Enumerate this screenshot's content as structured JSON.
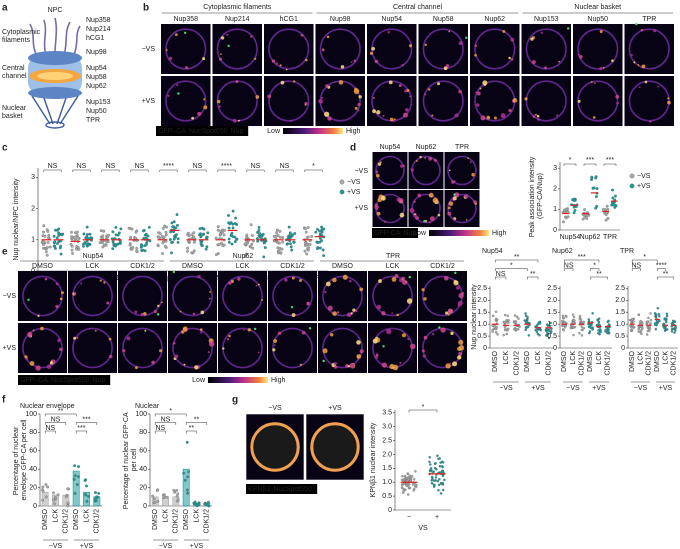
{
  "panel_labels": [
    "a",
    "b",
    "c",
    "d",
    "e",
    "f",
    "g"
  ],
  "a": {
    "title": "NPC",
    "left_labels": [
      "Cytoplasmic filaments",
      "Central channel",
      "Nuclear basket"
    ],
    "right_labels": [
      "Nup358",
      "Nup214",
      "hCG1",
      "Nup98",
      "Nup54",
      "Nup58",
      "Nup62",
      "Nup153",
      "Nup50",
      "TPR"
    ]
  },
  "b": {
    "groups": [
      "Cytoplasmic filaments",
      "Central channel",
      "Nuclear basket"
    ],
    "columns": [
      "Nup358",
      "Nup214",
      "hCG1",
      "Nup98",
      "Nup54",
      "Nup58",
      "Nup62",
      "Nup153",
      "Nup50",
      "TPR"
    ],
    "rows": [
      "−VS",
      "+VS"
    ],
    "legend": [
      "GFP–CA",
      "NucSpot650",
      "Nup"
    ],
    "colorbar": [
      "Low",
      "High"
    ]
  },
  "c": {
    "chart_data": {
      "type": "strip",
      "ylabel": "Nup nuclear/NPC intensity",
      "categories": [
        "Nup358",
        "Nup214",
        "hCG1",
        "Nup98",
        "Nup54",
        "Nup58",
        "Nup62",
        "Nup153",
        "Nup50",
        "TPR"
      ],
      "ylim": [
        0,
        3.3
      ],
      "yticks": [
        0,
        1,
        2,
        3
      ],
      "significance": [
        "NS",
        "NS",
        "NS",
        "NS",
        "****",
        "NS",
        "****",
        "NS",
        "NS",
        "*"
      ],
      "series": [
        {
          "name": "−VS",
          "color": "#a8a8a8",
          "values": [
            1.0,
            0.95,
            1.0,
            1.0,
            1.0,
            1.0,
            1.0,
            1.0,
            1.0,
            1.0
          ]
        },
        {
          "name": "+VS",
          "color": "#1a9a9a",
          "values": [
            1.0,
            1.0,
            1.0,
            1.0,
            1.3,
            1.0,
            1.3,
            1.0,
            1.0,
            1.1
          ]
        }
      ]
    }
  },
  "d": {
    "columns": [
      "Nup54",
      "Nup62",
      "TPR"
    ],
    "rows": [
      "−VS",
      "+VS"
    ],
    "legend": [
      "GFP-CA",
      "Nup"
    ],
    "colorbar": [
      "Low",
      "High"
    ],
    "chart_data": {
      "type": "strip",
      "ylabel": "Peak association intensity (GFP-CA/Nup)",
      "categories": [
        "Nup54",
        "Nup62",
        "TPR"
      ],
      "ylim": [
        0,
        3.3
      ],
      "yticks": [
        0,
        1,
        2,
        3
      ],
      "significance": [
        "*",
        "***",
        "***"
      ],
      "series": [
        {
          "name": "−VS",
          "color": "#a8a8a8",
          "values": [
            0.8,
            0.8,
            0.9
          ]
        },
        {
          "name": "+VS",
          "color": "#1a9a9a",
          "values": [
            1.2,
            1.8,
            1.4
          ]
        }
      ]
    }
  },
  "e": {
    "groups": [
      "Nup54",
      "Nup62",
      "TPR"
    ],
    "treatments": [
      "DMSO",
      "LCK",
      "CDK1/2"
    ],
    "rows": [
      "−VS",
      "+VS"
    ],
    "legend": [
      "GFP–CA",
      "NucSpot650",
      "Nup"
    ],
    "colorbar": [
      "Low",
      "High"
    ],
    "chart_data": [
      {
        "type": "strip",
        "title": "Nup54",
        "ylabel": "Nup nuclear intensity",
        "categories": [
          "DMSO",
          "LCK",
          "CDK1/2",
          "DMSO",
          "LCK",
          "CDK1/2"
        ],
        "groups": [
          "−VS",
          "+VS"
        ],
        "ylim": [
          0,
          2.6
        ],
        "yticks": [
          0,
          0.5,
          {
            "value": 1,
            "label": "1.0"
          },
          1.5,
          {
            "value": 2,
            "label": "2.0"
          },
          2.5
        ],
        "significance": [
          "**",
          "*",
          "NS",
          "**"
        ],
        "series": [
          {
            "colors": [
              "#a8a8a8",
              "#a8a8a8",
              "#a8a8a8",
              "#1a9a9a",
              "#1a9a9a",
              "#1a9a9a"
            ],
            "values": [
              1.0,
              0.95,
              0.95,
              1.0,
              0.85,
              0.85
            ]
          }
        ]
      },
      {
        "type": "strip",
        "title": "Nup62",
        "categories": [
          "DMSO",
          "LCK",
          "CDK1/2",
          "DMSO",
          "LCK",
          "CDK1/2"
        ],
        "groups": [
          "−VS",
          "+VS"
        ],
        "ylim": [
          0,
          2.6
        ],
        "yticks": [
          0,
          0.5,
          {
            "value": 1,
            "label": "1.0"
          },
          1.5,
          {
            "value": 2,
            "label": "2.0"
          },
          2.5
        ],
        "significance": [
          "***",
          "NS",
          "*",
          "**"
        ],
        "series": [
          {
            "colors": [
              "#a8a8a8",
              "#a8a8a8",
              "#a8a8a8",
              "#1a9a9a",
              "#1a9a9a",
              "#1a9a9a"
            ],
            "values": [
              1.0,
              1.0,
              1.0,
              1.05,
              0.9,
              0.9
            ]
          }
        ]
      },
      {
        "type": "strip",
        "title": "TPR",
        "categories": [
          "DMSO",
          "LCK",
          "CDK1/2",
          "DMSO",
          "LCK",
          "CDK1/2"
        ],
        "groups": [
          "−VS",
          "+VS"
        ],
        "ylim": [
          0,
          2.6
        ],
        "yticks": [
          0,
          0.5,
          {
            "value": 1,
            "label": "1.0"
          },
          1.5,
          {
            "value": 2,
            "label": "2.0"
          },
          2.5
        ],
        "significance": [
          "*",
          "NS",
          "****",
          "**"
        ],
        "series": [
          {
            "colors": [
              "#a8a8a8",
              "#a8a8a8",
              "#a8a8a8",
              "#1a9a9a",
              "#1a9a9a",
              "#1a9a9a"
            ],
            "values": [
              1.0,
              0.95,
              0.95,
              1.2,
              0.95,
              0.95
            ]
          }
        ]
      }
    ]
  },
  "f": {
    "chart_data": [
      {
        "type": "bar",
        "title": "Nuclear envelope",
        "ylabel": "Percentage of nuclear envelope GFP-CA per cell",
        "categories": [
          "DMSO",
          "LCK",
          "CDK1/2",
          "DMSO",
          "LCK",
          "CDK1/2"
        ],
        "groups": [
          "−VS",
          "+VS"
        ],
        "ylim": [
          0,
          100
        ],
        "yticks": [
          0,
          20,
          40,
          60,
          80,
          100
        ],
        "significance": [
          "**",
          "NS",
          "***",
          "NS",
          "***"
        ],
        "series": [
          {
            "colors": [
              "#a8a8a8",
              "#a8a8a8",
              "#a8a8a8",
              "#1a9a9a",
              "#1a9a9a",
              "#1a9a9a"
            ],
            "values": [
              15,
              12,
              12,
              38,
              15,
              10
            ]
          }
        ]
      },
      {
        "type": "bar",
        "title": "Nuclear",
        "ylabel": "Percentage of nuclear GFP-CA per cell",
        "categories": [
          "DMSO",
          "LCK",
          "CDK1/2",
          "DMSO",
          "LCK",
          "CDK1/2"
        ],
        "groups": [
          "−VS",
          "+VS"
        ],
        "ylim": [
          0,
          100
        ],
        "yticks": [
          0,
          20,
          40,
          60,
          80,
          100
        ],
        "significance": [
          "*",
          "NS",
          "**",
          "NS",
          "**"
        ],
        "series": [
          {
            "colors": [
              "#a8a8a8",
              "#a8a8a8",
              "#a8a8a8",
              "#1a9a9a",
              "#1a9a9a",
              "#1a9a9a"
            ],
            "values": [
              10,
              10,
              10,
              40,
              3,
              3
            ]
          }
        ]
      }
    ]
  },
  "g": {
    "images": [
      "−VS",
      "+VS"
    ],
    "legend": [
      "KPNβ1",
      "NucSpot650"
    ],
    "chart_data": {
      "type": "strip",
      "ylabel": "KPNβ1 nuclear intensity",
      "categories": [
        "−",
        "+"
      ],
      "xlabel": "VS",
      "ylim": [
        0,
        3.6
      ],
      "yticks": [
        0,
        0.5,
        {
          "value": 1,
          "label": "1.0"
        },
        1.5,
        {
          "value": 2,
          "label": "2.0"
        },
        2.5,
        {
          "value": 3,
          "label": "3.0"
        },
        3.5
      ],
      "significance": [
        "*"
      ],
      "series": [
        {
          "colors": [
            "#a8a8a8",
            "#1a9a9a"
          ],
          "values": [
            1.0,
            1.3
          ]
        }
      ]
    }
  }
}
